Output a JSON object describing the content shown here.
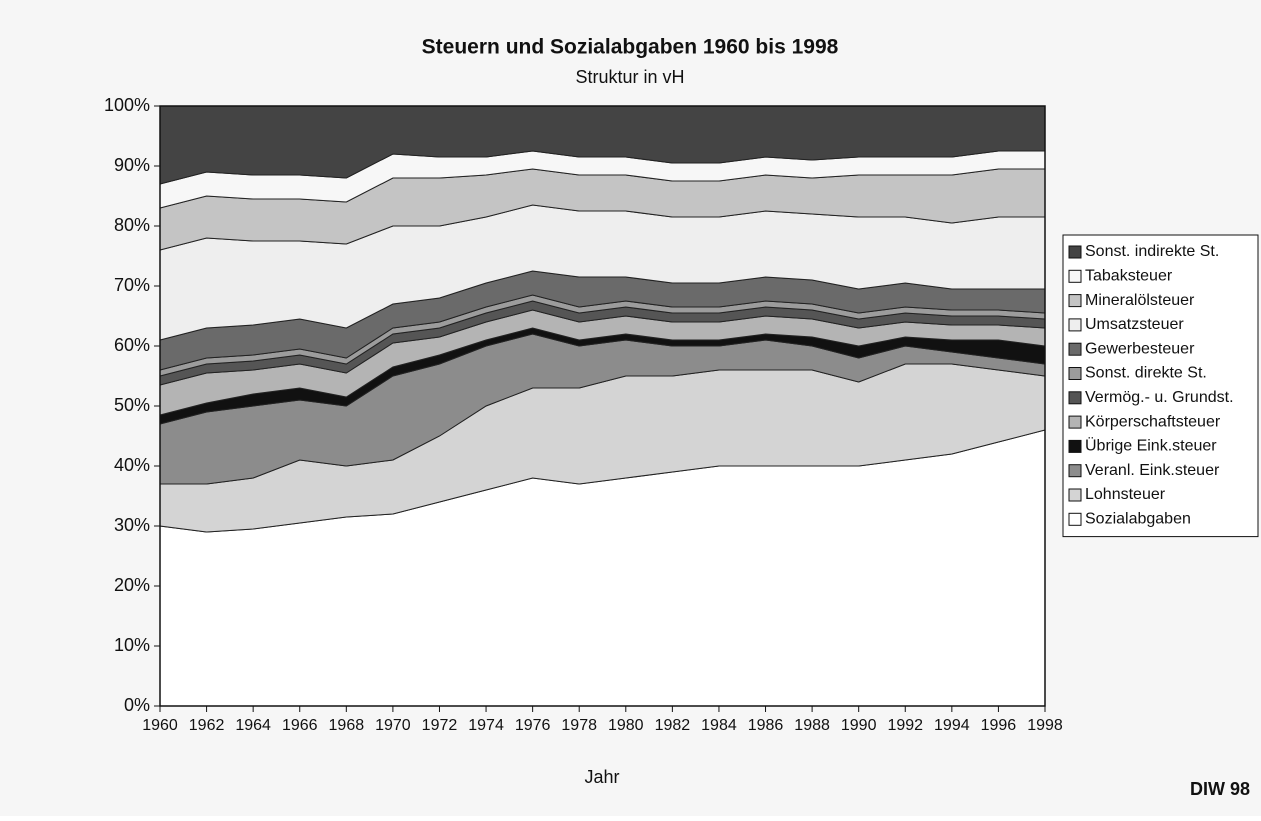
{
  "chart_data": {
    "type": "stacked_area",
    "title": "Steuern und Sozialabgaben 1960 bis 1998",
    "subtitle": "Struktur in vH",
    "x_label": "Jahr",
    "source": "DIW 98",
    "x": [
      1960,
      1962,
      1964,
      1966,
      1968,
      1970,
      1972,
      1974,
      1976,
      1978,
      1980,
      1982,
      1984,
      1986,
      1988,
      1990,
      1992,
      1994,
      1996,
      1998
    ],
    "xlim": [
      1960,
      1998
    ],
    "xticks": [
      1960,
      1962,
      1964,
      1966,
      1968,
      1970,
      1972,
      1974,
      1976,
      1978,
      1980,
      1982,
      1984,
      1986,
      1988,
      1990,
      1992,
      1994,
      1996,
      1998
    ],
    "ylim": [
      0,
      100
    ],
    "yticks": [
      {
        "value": 0,
        "label": "0%"
      },
      {
        "value": 10,
        "label": "10%"
      },
      {
        "value": 20,
        "label": "20%"
      },
      {
        "value": 30,
        "label": "30%"
      },
      {
        "value": 40,
        "label": "40%"
      },
      {
        "value": 50,
        "label": "50%"
      },
      {
        "value": 60,
        "label": "60%"
      },
      {
        "value": 70,
        "label": "70%"
      },
      {
        "value": 80,
        "label": "80%"
      },
      {
        "value": 90,
        "label": "90%"
      },
      {
        "value": 100,
        "label": "100%"
      }
    ],
    "legend": "right",
    "series": [
      {
        "name": "Sozialabgaben",
        "color": "#ffffff",
        "values": [
          30,
          29,
          29.5,
          30.5,
          31.5,
          32,
          34,
          36,
          38,
          37,
          38,
          39,
          40,
          40,
          40,
          40,
          41,
          42,
          44,
          46
        ]
      },
      {
        "name": "Lohnsteuer",
        "color": "#d4d4d4",
        "values": [
          7,
          8,
          8.5,
          10.5,
          8.5,
          9,
          11,
          14,
          15,
          16,
          17,
          16,
          16,
          16,
          16,
          14,
          16,
          15,
          12,
          9
        ]
      },
      {
        "name": "Veranl. Eink.steuer",
        "color": "#8c8c8c",
        "values": [
          10,
          12,
          12,
          10,
          10,
          14,
          12,
          10,
          9,
          7,
          6,
          5,
          4,
          5,
          4,
          4,
          3,
          2,
          2,
          2
        ]
      },
      {
        "name": "Übrige Eink.steuer",
        "color": "#111111",
        "values": [
          1.5,
          1.5,
          2,
          2,
          1.5,
          1.5,
          1.5,
          1,
          1,
          1,
          1,
          1,
          1,
          1,
          1.5,
          2,
          1.5,
          2,
          3,
          3
        ]
      },
      {
        "name": "Körperschaftsteuer",
        "color": "#b4b4b4",
        "values": [
          5,
          5,
          4,
          4,
          4,
          4,
          3,
          3,
          3,
          3,
          3,
          3,
          3,
          3,
          3,
          3,
          2.5,
          2.5,
          2.5,
          3
        ]
      },
      {
        "name": "Vermög.- u. Grundst.",
        "color": "#555555",
        "values": [
          1.5,
          1.5,
          1.5,
          1.5,
          1.5,
          1.5,
          1.5,
          1.5,
          1.5,
          1.5,
          1.5,
          1.5,
          1.5,
          1.5,
          1.5,
          1.5,
          1.5,
          1.5,
          1.5,
          1.5
        ]
      },
      {
        "name": "Sonst. direkte St.",
        "color": "#9c9c9c",
        "values": [
          1,
          1,
          1,
          1,
          1,
          1,
          1,
          1,
          1,
          1,
          1,
          1,
          1,
          1,
          1,
          1,
          1,
          1,
          1,
          1
        ]
      },
      {
        "name": "Gewerbesteuer",
        "color": "#6a6a6a",
        "values": [
          5,
          5,
          5,
          5,
          5,
          4,
          4,
          4,
          4,
          5,
          4,
          4,
          4,
          4,
          4,
          4,
          4,
          3.5,
          3.5,
          4
        ]
      },
      {
        "name": "Umsatzsteuer",
        "color": "#eeeeee",
        "values": [
          15,
          15,
          14,
          13,
          14,
          13,
          12,
          11,
          11,
          11,
          11,
          11,
          11,
          11,
          11,
          12,
          11,
          11,
          12,
          12
        ]
      },
      {
        "name": "Mineralölsteuer",
        "color": "#c4c4c4",
        "values": [
          7,
          7,
          7,
          7,
          7,
          8,
          8,
          7,
          6,
          6,
          6,
          6,
          6,
          6,
          6,
          7,
          7,
          8,
          8,
          8
        ]
      },
      {
        "name": "Tabaksteuer",
        "color": "#f7f7f7",
        "values": [
          4,
          4,
          4,
          4,
          4,
          4,
          3.5,
          3,
          3,
          3,
          3,
          3,
          3,
          3,
          3,
          3,
          3,
          3,
          3,
          3
        ]
      },
      {
        "name": "Sonst. indirekte St.",
        "color": "#444444",
        "values": [
          13,
          11,
          11.5,
          11.5,
          12,
          8,
          8.5,
          8.5,
          7.5,
          8.5,
          8.5,
          9.5,
          9.5,
          8.5,
          9,
          8.5,
          8.5,
          8.5,
          7.5,
          7.5
        ]
      }
    ]
  }
}
